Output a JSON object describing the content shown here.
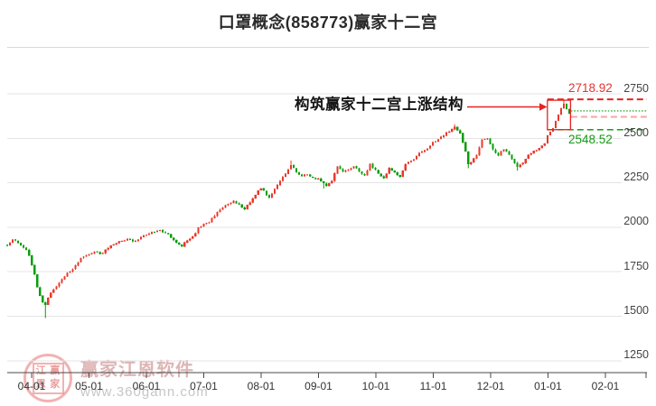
{
  "page": {
    "title": "口罩概念(858773)赢家十二宫"
  },
  "chart_data": {
    "type": "candlestick",
    "title": "口罩概念(858773)赢家十二宫",
    "grid": true,
    "ylim": [
      1250,
      2750
    ],
    "y_tick_labels": [
      "2750",
      "2500",
      "2250",
      "2000",
      "1750",
      "1500",
      "1250"
    ],
    "x_tick_labels": [
      "04-01",
      "05-01",
      "06-01",
      "07-01",
      "08-01",
      "09-01",
      "10-01",
      "11-01",
      "12-01",
      "01-01",
      "02-01"
    ],
    "days_total": 207,
    "up_color": "#e8392b",
    "down_color": "#0b9c0b",
    "annotation": {
      "text": "构筑赢家十二宫上涨结构"
    },
    "structure_box": {
      "top_price": 2714,
      "bottom_price": 2548.52,
      "from_day": 198,
      "to_day": 206
    },
    "levels": [
      {
        "name": "resistance-high",
        "value": 2718.92,
        "label": "2718.92",
        "style": "dashed",
        "color": "#e62222"
      },
      {
        "name": "current-price",
        "value": 2654,
        "label": "",
        "style": "dotted",
        "color": "#0b9c0b"
      },
      {
        "name": "retrace-line",
        "value": 2621,
        "label": "",
        "style": "dashed",
        "color": "#f5a6a6"
      },
      {
        "name": "structure-low",
        "value": 2548.52,
        "label": "2548.52",
        "style": "dashed",
        "color": "#12a012"
      }
    ],
    "series": {
      "name": "口罩概念(858773)",
      "close_path": [
        [
          0,
          1896
        ],
        [
          2,
          1930
        ],
        [
          4,
          1915
        ],
        [
          7,
          1870
        ],
        [
          8,
          1845
        ],
        [
          10,
          1735
        ],
        [
          11,
          1660
        ],
        [
          12,
          1612
        ],
        [
          13,
          1578
        ],
        [
          14,
          1568
        ],
        [
          15,
          1605
        ],
        [
          16,
          1630
        ],
        [
          18,
          1670
        ],
        [
          20,
          1706
        ],
        [
          22,
          1741
        ],
        [
          25,
          1782
        ],
        [
          27,
          1823
        ],
        [
          29,
          1843
        ],
        [
          32,
          1863
        ],
        [
          34,
          1848
        ],
        [
          37,
          1883
        ],
        [
          40,
          1914
        ],
        [
          44,
          1934
        ],
        [
          46,
          1919
        ],
        [
          49,
          1944
        ],
        [
          51,
          1959
        ],
        [
          54,
          1975
        ],
        [
          56,
          1985
        ],
        [
          59,
          1959
        ],
        [
          61,
          1924
        ],
        [
          64,
          1893
        ],
        [
          65,
          1919
        ],
        [
          68,
          1944
        ],
        [
          70,
          1995
        ],
        [
          72,
          2015
        ],
        [
          74,
          2030
        ],
        [
          77,
          2085
        ],
        [
          80,
          2120
        ],
        [
          83,
          2150
        ],
        [
          87,
          2100
        ],
        [
          91,
          2187
        ],
        [
          93,
          2222
        ],
        [
          96,
          2165
        ],
        [
          99,
          2238
        ],
        [
          102,
          2304
        ],
        [
          104,
          2350
        ],
        [
          106,
          2310
        ],
        [
          108,
          2290
        ],
        [
          110,
          2295
        ],
        [
          112,
          2280
        ],
        [
          114,
          2270
        ],
        [
          116,
          2245
        ],
        [
          117,
          2235
        ],
        [
          118,
          2250
        ],
        [
          119,
          2265
        ],
        [
          121,
          2340
        ],
        [
          123,
          2315
        ],
        [
          125,
          2325
        ],
        [
          127,
          2344
        ],
        [
          129,
          2314
        ],
        [
          131,
          2294
        ],
        [
          133,
          2355
        ],
        [
          136,
          2304
        ],
        [
          138,
          2273
        ],
        [
          140,
          2334
        ],
        [
          142,
          2304
        ],
        [
          144,
          2284
        ],
        [
          146,
          2355
        ],
        [
          149,
          2385
        ],
        [
          151,
          2415
        ],
        [
          154,
          2440
        ],
        [
          156,
          2476
        ],
        [
          159,
          2506
        ],
        [
          161,
          2532
        ],
        [
          163,
          2552
        ],
        [
          164,
          2560
        ],
        [
          166,
          2527
        ],
        [
          168,
          2426
        ],
        [
          169,
          2350
        ],
        [
          172,
          2406
        ],
        [
          174,
          2492
        ],
        [
          176,
          2497
        ],
        [
          178,
          2436
        ],
        [
          180,
          2406
        ],
        [
          182,
          2441
        ],
        [
          184,
          2406
        ],
        [
          186,
          2365
        ],
        [
          187,
          2335
        ],
        [
          189,
          2365
        ],
        [
          191,
          2406
        ],
        [
          193,
          2426
        ],
        [
          195,
          2446
        ],
        [
          197,
          2472
        ],
        [
          198,
          2517
        ],
        [
          200,
          2557
        ],
        [
          201,
          2598
        ],
        [
          202,
          2633
        ],
        [
          203,
          2669
        ],
        [
          204,
          2694
        ],
        [
          205,
          2664
        ],
        [
          206,
          2639
        ]
      ],
      "wick_overrides": {
        "14": {
          "low": 1490
        },
        "104": {
          "high": 2375
        },
        "116": {
          "low": 2218
        },
        "164": {
          "high": 2578
        },
        "169": {
          "low": 2332
        },
        "187": {
          "low": 2318
        },
        "204": {
          "high": 2718.92
        }
      }
    }
  },
  "watermark": {
    "brand": "赢家江恩软件",
    "url": "www.360gann.com",
    "seal_chars": [
      "江",
      "赢",
      "恩",
      "家"
    ]
  },
  "colors": {
    "up": "#e8392b",
    "down": "#0b9c0b",
    "grid": "#e4e4e4",
    "axis": "#4a4a4a",
    "accent_red": "#e62222",
    "pink_line": "#f5a6a6",
    "label_red": "#e63333",
    "label_green": "#149914",
    "title_text": "#2a2a2a"
  }
}
